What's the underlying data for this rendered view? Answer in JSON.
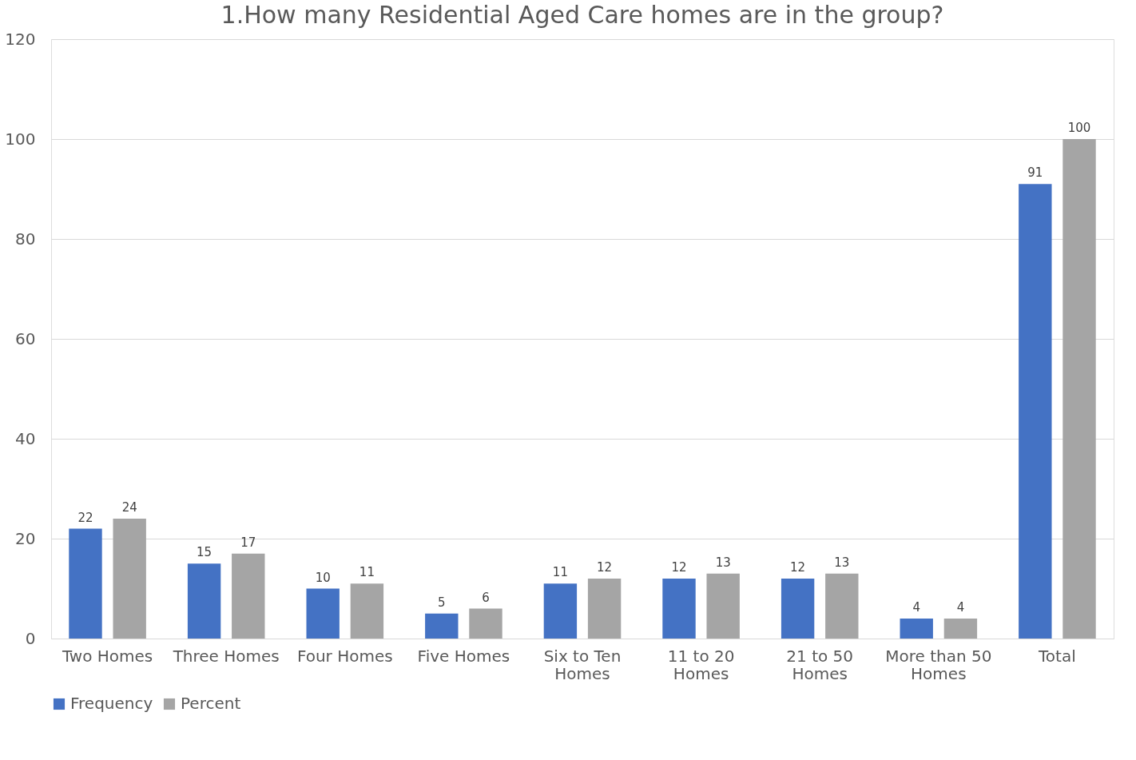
{
  "chart_data": {
    "type": "bar",
    "title": "1.How many Residential Aged Care homes are in the group?",
    "categories": [
      "Two Homes",
      "Three Homes",
      "Four Homes",
      "Five Homes",
      "Six to Ten Homes",
      "11 to 20 Homes",
      "21 to 50 Homes",
      "More than 50 Homes",
      "Total"
    ],
    "series": [
      {
        "name": "Frequency",
        "color": "#4472c4",
        "values": [
          22,
          15,
          10,
          5,
          11,
          12,
          12,
          4,
          91
        ]
      },
      {
        "name": "Percent",
        "color": "#a5a5a5",
        "values": [
          24,
          17,
          11,
          6,
          12,
          13,
          13,
          4,
          100
        ]
      }
    ],
    "ylim": [
      0,
      120
    ],
    "yticks": [
      0,
      20,
      40,
      60,
      80,
      100,
      120
    ],
    "grid": "y",
    "legend": "bottom",
    "data_labels": true
  }
}
